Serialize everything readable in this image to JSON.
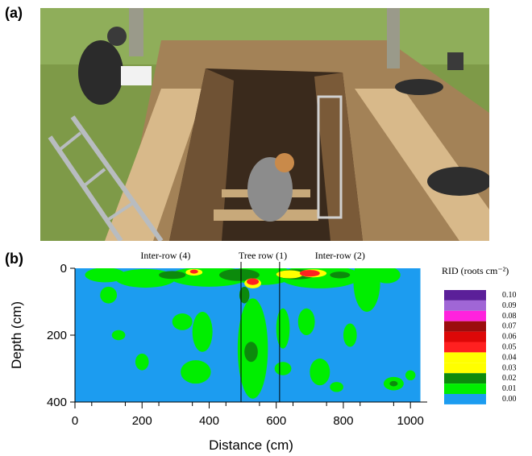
{
  "panels": {
    "a": "(a)",
    "b": "(b)"
  },
  "photo": {
    "colors": {
      "sky_grass": "#7e9a48",
      "soil": "#8a6a44",
      "plank": "#d8b98a",
      "trench": "#3a2a1c",
      "ladder": "#b8bcc0"
    }
  },
  "chart_data": {
    "type": "heatmap",
    "title": "",
    "xlabel": "Distance (cm)",
    "ylabel": "Depth (cm)",
    "xlim": [
      0,
      1050
    ],
    "ylim": [
      400,
      0
    ],
    "x_ticks": [
      0,
      200,
      400,
      600,
      800,
      1000
    ],
    "x_tick_labels": [
      "0",
      "200",
      "400",
      "600",
      "800",
      "1000"
    ],
    "y_ticks": [
      0,
      200,
      400
    ],
    "y_tick_labels": [
      "0",
      "200",
      "400"
    ],
    "data_extent_x": [
      0,
      1030
    ],
    "background_value": 0.0,
    "regions": [
      {
        "label": "Inter-row (4)",
        "x": 270
      },
      {
        "label": "Tree row (1)",
        "x": 560
      },
      {
        "label": "Inter-row (2)",
        "x": 790
      }
    ],
    "vertical_lines": [
      495,
      610
    ],
    "colorbar": {
      "title": "RID (roots cm⁻²)",
      "levels": [
        "0.10",
        "0.09",
        "0.08",
        "0.07",
        "0.06",
        "0.05",
        "0.04",
        "0.03",
        "0.02",
        "0.01",
        "0.00"
      ],
      "colors": [
        "#5b1f99",
        "#a066d6",
        "#ff22dd",
        "#9b0d0d",
        "#dd0808",
        "#ff2020",
        "#ffff00",
        "#ffff00",
        "#0c8a0c",
        "#00ee00",
        "#1c9cf0"
      ]
    },
    "blobs": [
      {
        "cx": 90,
        "cy": 20,
        "rx": 60,
        "ry": 22,
        "v": 0.01
      },
      {
        "cx": 100,
        "cy": 80,
        "rx": 25,
        "ry": 25,
        "v": 0.01
      },
      {
        "cx": 210,
        "cy": 30,
        "rx": 90,
        "ry": 28,
        "v": 0.01
      },
      {
        "cx": 400,
        "cy": 25,
        "rx": 120,
        "ry": 30,
        "v": 0.01
      },
      {
        "cx": 560,
        "cy": 20,
        "rx": 90,
        "ry": 30,
        "v": 0.01
      },
      {
        "cx": 730,
        "cy": 25,
        "rx": 120,
        "ry": 35,
        "v": 0.01
      },
      {
        "cx": 870,
        "cy": 40,
        "rx": 40,
        "ry": 90,
        "v": 0.01
      },
      {
        "cx": 930,
        "cy": 20,
        "rx": 40,
        "ry": 25,
        "v": 0.01
      },
      {
        "cx": 320,
        "cy": 160,
        "rx": 30,
        "ry": 25,
        "v": 0.01
      },
      {
        "cx": 380,
        "cy": 190,
        "rx": 30,
        "ry": 60,
        "v": 0.01
      },
      {
        "cx": 360,
        "cy": 310,
        "rx": 45,
        "ry": 35,
        "v": 0.01
      },
      {
        "cx": 200,
        "cy": 280,
        "rx": 20,
        "ry": 25,
        "v": 0.01
      },
      {
        "cx": 130,
        "cy": 200,
        "rx": 20,
        "ry": 15,
        "v": 0.01
      },
      {
        "cx": 530,
        "cy": 240,
        "rx": 45,
        "ry": 150,
        "v": 0.01
      },
      {
        "cx": 620,
        "cy": 180,
        "rx": 20,
        "ry": 60,
        "v": 0.01
      },
      {
        "cx": 690,
        "cy": 160,
        "rx": 25,
        "ry": 40,
        "v": 0.01
      },
      {
        "cx": 730,
        "cy": 310,
        "rx": 30,
        "ry": 40,
        "v": 0.01
      },
      {
        "cx": 620,
        "cy": 300,
        "rx": 25,
        "ry": 20,
        "v": 0.01
      },
      {
        "cx": 820,
        "cy": 200,
        "rx": 20,
        "ry": 35,
        "v": 0.01
      },
      {
        "cx": 950,
        "cy": 345,
        "rx": 30,
        "ry": 20,
        "v": 0.01
      },
      {
        "cx": 1000,
        "cy": 320,
        "rx": 15,
        "ry": 15,
        "v": 0.01
      },
      {
        "cx": 780,
        "cy": 355,
        "rx": 20,
        "ry": 15,
        "v": 0.01
      },
      {
        "cx": 290,
        "cy": 20,
        "rx": 40,
        "ry": 12,
        "v": 0.02
      },
      {
        "cx": 490,
        "cy": 20,
        "rx": 60,
        "ry": 18,
        "v": 0.02
      },
      {
        "cx": 660,
        "cy": 18,
        "rx": 60,
        "ry": 15,
        "v": 0.02
      },
      {
        "cx": 790,
        "cy": 20,
        "rx": 30,
        "ry": 10,
        "v": 0.02
      },
      {
        "cx": 525,
        "cy": 250,
        "rx": 20,
        "ry": 30,
        "v": 0.02
      },
      {
        "cx": 505,
        "cy": 80,
        "rx": 15,
        "ry": 25,
        "v": 0.02
      },
      {
        "cx": 950,
        "cy": 345,
        "rx": 12,
        "ry": 8,
        "v": 0.02
      },
      {
        "cx": 640,
        "cy": 18,
        "rx": 40,
        "ry": 12,
        "v": 0.03
      },
      {
        "cx": 355,
        "cy": 12,
        "rx": 25,
        "ry": 10,
        "v": 0.03
      },
      {
        "cx": 530,
        "cy": 45,
        "rx": 25,
        "ry": 15,
        "v": 0.03
      },
      {
        "cx": 710,
        "cy": 15,
        "rx": 40,
        "ry": 12,
        "v": 0.04
      },
      {
        "cx": 530,
        "cy": 40,
        "rx": 18,
        "ry": 10,
        "v": 0.05
      },
      {
        "cx": 700,
        "cy": 15,
        "rx": 30,
        "ry": 10,
        "v": 0.05
      },
      {
        "cx": 355,
        "cy": 10,
        "rx": 12,
        "ry": 6,
        "v": 0.05
      }
    ]
  }
}
